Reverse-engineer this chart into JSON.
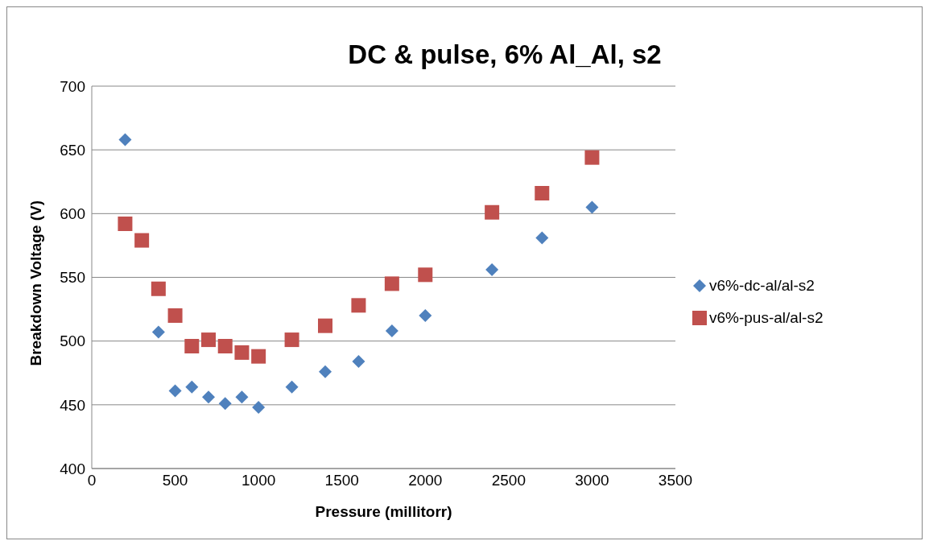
{
  "chart_data": {
    "type": "scatter",
    "title": "DC & pulse, 6%  Al_Al, s2",
    "xlabel": "Pressure (millitorr)",
    "ylabel": "Breakdown Voltage (V)",
    "xlim": [
      0,
      3500
    ],
    "xticks": [
      0,
      500,
      1000,
      1500,
      2000,
      2500,
      3000,
      3500
    ],
    "ylim": [
      400,
      700
    ],
    "yticks": [
      400,
      450,
      500,
      550,
      600,
      650,
      700
    ],
    "grid": "y",
    "legend": "right",
    "series": [
      {
        "name": "v6%-dc-al/al-s2",
        "color": "#4f81bd",
        "marker": "diamond",
        "x": [
          200,
          400,
          500,
          600,
          700,
          800,
          900,
          1000,
          1200,
          1400,
          1600,
          1800,
          2000,
          2400,
          2700,
          3000
        ],
        "values": [
          658,
          507,
          461,
          464,
          456,
          451,
          456,
          448,
          464,
          476,
          484,
          508,
          520,
          556,
          581,
          605
        ]
      },
      {
        "name": "v6%-pus-al/al-s2",
        "color": "#c0504d",
        "marker": "square",
        "x": [
          200,
          300,
          400,
          500,
          600,
          700,
          800,
          900,
          1000,
          1200,
          1400,
          1600,
          1800,
          2000,
          2400,
          2700,
          3000
        ],
        "values": [
          592,
          579,
          541,
          520,
          496,
          501,
          496,
          491,
          488,
          501,
          512,
          528,
          545,
          552,
          601,
          616,
          644
        ]
      }
    ]
  }
}
